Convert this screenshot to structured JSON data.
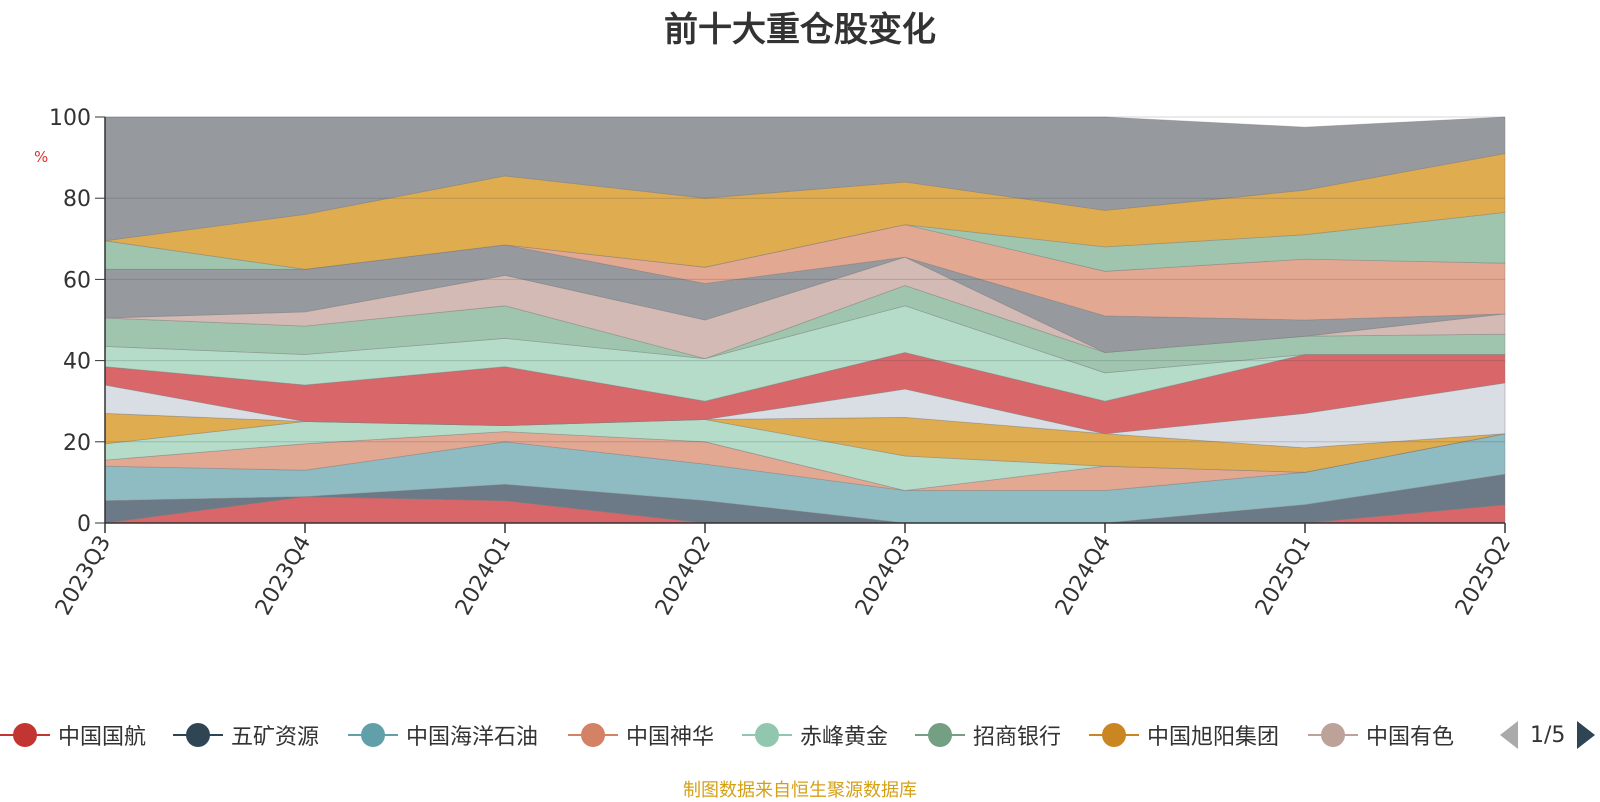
{
  "chart_data": {
    "type": "area",
    "title": "前十大重仓股变化",
    "ylabel": "%",
    "ylim": [
      0,
      100
    ],
    "y_ticks": [
      0,
      20,
      40,
      60,
      80,
      100
    ],
    "grid": true,
    "legend_position": "bottom",
    "categories": [
      "2023Q3",
      "2023Q4",
      "2024Q1",
      "2024Q2",
      "2024Q3",
      "2024Q4",
      "2025Q1",
      "2025Q2"
    ],
    "boundaries": [
      [
        0,
        0,
        0,
        0,
        0,
        0,
        0,
        0
      ],
      [
        0,
        6.5,
        5.5,
        0,
        0,
        0,
        0,
        4.5
      ],
      [
        5.5,
        6.5,
        9.5,
        5.5,
        0,
        0,
        4.5,
        12
      ],
      [
        14,
        13,
        20,
        14.5,
        8,
        8,
        12.5,
        22
      ],
      [
        15.5,
        19.5,
        22.5,
        20,
        8,
        14,
        12.5,
        22
      ],
      [
        19.5,
        25,
        24,
        25.5,
        16.5,
        14,
        12.5,
        22
      ],
      [
        27,
        25,
        24,
        25.5,
        26,
        22,
        18.5,
        22
      ],
      [
        34,
        25,
        24,
        25.5,
        33,
        22,
        27,
        34.5
      ],
      [
        38.5,
        34,
        38.5,
        30,
        42,
        30,
        41.5,
        41.5
      ],
      [
        43.5,
        41.5,
        45.5,
        40.5,
        53.5,
        37,
        41.5,
        41.5
      ],
      [
        50.5,
        48.5,
        53.5,
        40.5,
        58.5,
        42,
        46,
        46.5
      ],
      [
        50.5,
        52,
        61,
        50,
        65.5,
        42,
        46,
        51.5
      ],
      [
        62.5,
        62.5,
        68.5,
        59,
        65.5,
        51,
        50,
        51.5
      ],
      [
        62.5,
        62.5,
        68.5,
        63,
        73.5,
        62,
        65,
        64
      ],
      [
        69.5,
        62.5,
        68.5,
        63,
        73.5,
        68,
        71,
        76.5
      ],
      [
        69.5,
        76,
        85.5,
        80,
        84,
        77,
        82,
        91
      ],
      [
        100,
        100,
        100,
        100,
        100,
        100,
        97.5,
        100
      ]
    ],
    "band_colors": [
      "#d9676a",
      "#6b7a86",
      "#8fbbc2",
      "#e3a892",
      "#b4dcc9",
      "#e0ac50",
      "#d9dde4",
      "#d9676a",
      "#b4dcc9",
      "#a0c5ae",
      "#d3bab4",
      "#96999e",
      "#e3a892",
      "#a0c5ae",
      "#e0ac50",
      "#96999e",
      "#84939b"
    ],
    "series": [
      {
        "name": "中国国航",
        "color": "#c23531"
      },
      {
        "name": "五矿资源",
        "color": "#2f4554"
      },
      {
        "name": "中国海洋石油",
        "color": "#61a0a8"
      },
      {
        "name": "中国神华",
        "color": "#d48265"
      },
      {
        "name": "赤峰黄金",
        "color": "#91c7ae"
      },
      {
        "name": "招商银行",
        "color": "#749f83"
      },
      {
        "name": "中国旭阳集团",
        "color": "#ca8622"
      },
      {
        "name": "中国有色",
        "color": "#bda29a"
      }
    ]
  },
  "legend": {
    "page_indicator": "1/5"
  },
  "footer": {
    "source_text": "制图数据来自恒生聚源数据库"
  }
}
